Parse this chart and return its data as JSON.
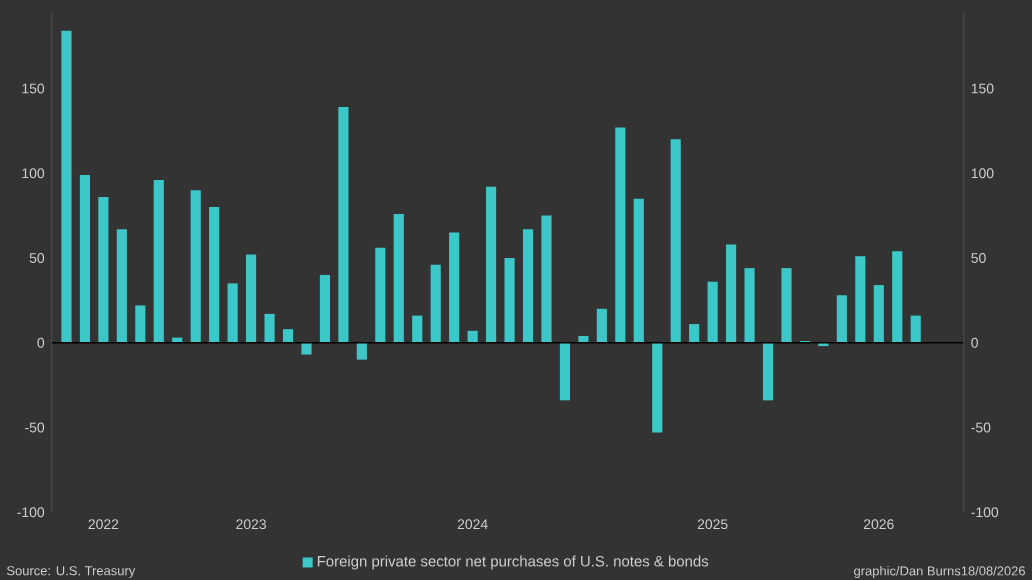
{
  "chart_data": {
    "type": "bar",
    "categories": [
      null,
      null,
      "2022",
      null,
      null,
      null,
      null,
      null,
      null,
      null,
      "2023",
      null,
      null,
      null,
      null,
      null,
      null,
      null,
      null,
      null,
      null,
      null,
      "2024",
      null,
      null,
      null,
      null,
      null,
      null,
      null,
      null,
      null,
      null,
      null,
      null,
      "2025",
      null,
      null,
      null,
      null,
      null,
      null,
      null,
      null,
      "2026",
      null,
      null
    ],
    "series": [
      {
        "name": "Foreign private sector net purchases of U.S. notes & bonds",
        "color": "#3cc8c8",
        "values": [
          184,
          99,
          86,
          67,
          22,
          96,
          3,
          90,
          80,
          35,
          52,
          17,
          8,
          -7,
          40,
          139,
          -10,
          56,
          76,
          16,
          46,
          65,
          7,
          92,
          50,
          67,
          75,
          -34,
          4,
          20,
          127,
          85,
          -53,
          120,
          11,
          36,
          58,
          44,
          -34,
          44,
          1,
          -2,
          28,
          51,
          34,
          54,
          16
        ]
      }
    ],
    "ylim": [
      -100,
      195
    ],
    "yticks": [
      -100,
      -50,
      0,
      50,
      100,
      150
    ],
    "y2lim": [
      -100,
      195
    ],
    "y2ticks": [
      -100,
      -50,
      0,
      50,
      100,
      150
    ],
    "grid": false,
    "legend": "bottom",
    "ref_lines": [
      {
        "axis": "y",
        "value": 0,
        "color": "#000000"
      }
    ],
    "annotations": [
      "Source: U.S. Treasury",
      "graphic/Dan Burns18/08/2026"
    ]
  }
}
